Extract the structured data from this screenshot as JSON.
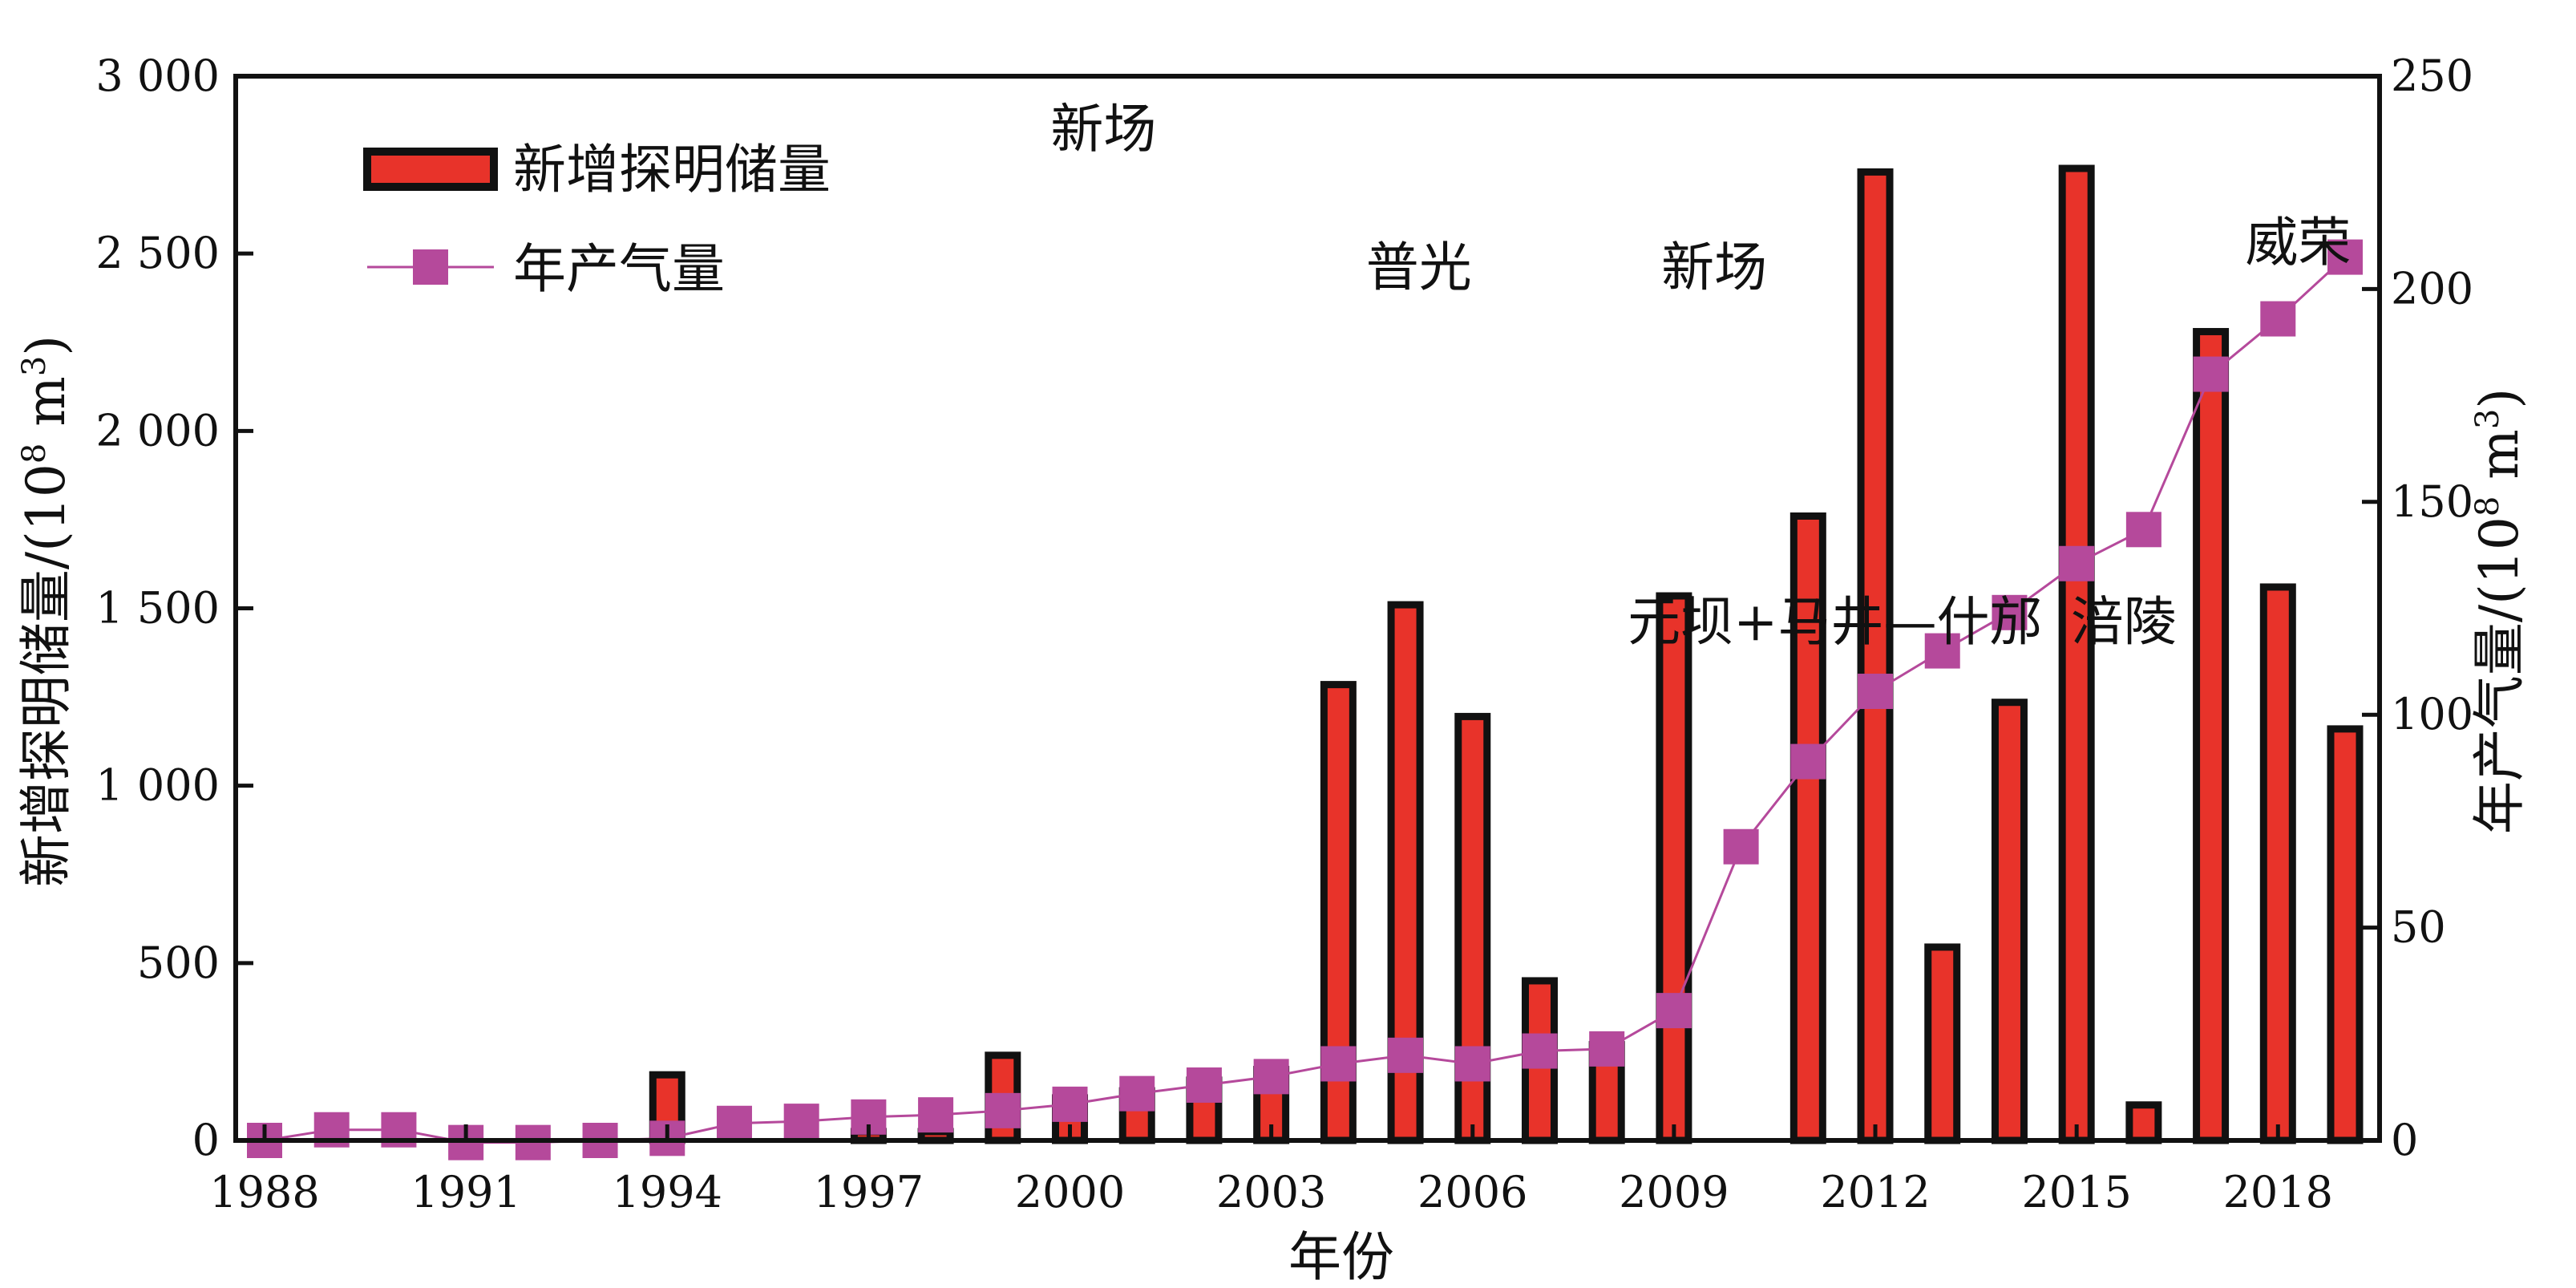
{
  "chart_data": {
    "type": "bar",
    "title": "",
    "x": [
      1988,
      1989,
      1990,
      1991,
      1992,
      1993,
      1994,
      1995,
      1996,
      1997,
      1998,
      1999,
      2000,
      2001,
      2002,
      2003,
      2004,
      2005,
      2006,
      2007,
      2008,
      2009,
      2010,
      2011,
      2012,
      2013,
      2014,
      2015,
      2016,
      2017,
      2018,
      2019
    ],
    "xticks": [
      "1988",
      "1991",
      "1994",
      "1997",
      "2000",
      "2003",
      "2006",
      "2009",
      "2012",
      "2015",
      "2018"
    ],
    "xlabel": "年份",
    "ylabel_left": "新增探明储量/(10",
    "ylabel_right": "年产气量/(10",
    "ylabel_unit_exp": "8",
    "ylabel_unit_base": " m",
    "ylabel_unit_pow": "3",
    "ylabel_close": ")",
    "yticks_left": [
      "0",
      "500",
      "1 000",
      "1 500",
      "2 000",
      "2 500",
      "3 000"
    ],
    "yticks_right": [
      "0",
      "50",
      "100",
      "150",
      "200",
      "250"
    ],
    "ylim_left": [
      0,
      3000
    ],
    "ylim_right": [
      0,
      250
    ],
    "legend_position": "top-left",
    "series": [
      {
        "name": "新增探明储量",
        "type": "bar",
        "axis": "left",
        "color": "#e8332a",
        "values": [
          0,
          0,
          0,
          0,
          0,
          0,
          185,
          0,
          0,
          25,
          25,
          240,
          120,
          140,
          170,
          200,
          1285,
          1510,
          1195,
          450,
          270,
          1535,
          0,
          1760,
          2730,
          545,
          1235,
          2740,
          100,
          2280,
          1560,
          1160
        ]
      },
      {
        "name": "年产气量",
        "type": "line",
        "axis": "right",
        "color": "#b5499b",
        "values": [
          0,
          2.5,
          2.5,
          -0.5,
          -0.5,
          0,
          0.5,
          4,
          4.5,
          5.5,
          6,
          7,
          8.5,
          11,
          13,
          15,
          18,
          20,
          18,
          21,
          21.5,
          30.5,
          69,
          89,
          105.5,
          115,
          124,
          135.5,
          143.5,
          180,
          193,
          207.5
        ]
      }
    ],
    "annotations": [
      {
        "text": "新场",
        "x": 2000.5,
        "y": 2850
      },
      {
        "text": "普光",
        "x": 2005.2,
        "y": 2460
      },
      {
        "text": "新场",
        "x": 2009.6,
        "y": 2460
      },
      {
        "text": "元坝+马井—什邡",
        "x": 2011.4,
        "y": 1460
      },
      {
        "text": "涪陵",
        "x": 2015.7,
        "y": 1460
      },
      {
        "text": "威荣",
        "x": 2018.3,
        "y": 2530
      }
    ]
  }
}
